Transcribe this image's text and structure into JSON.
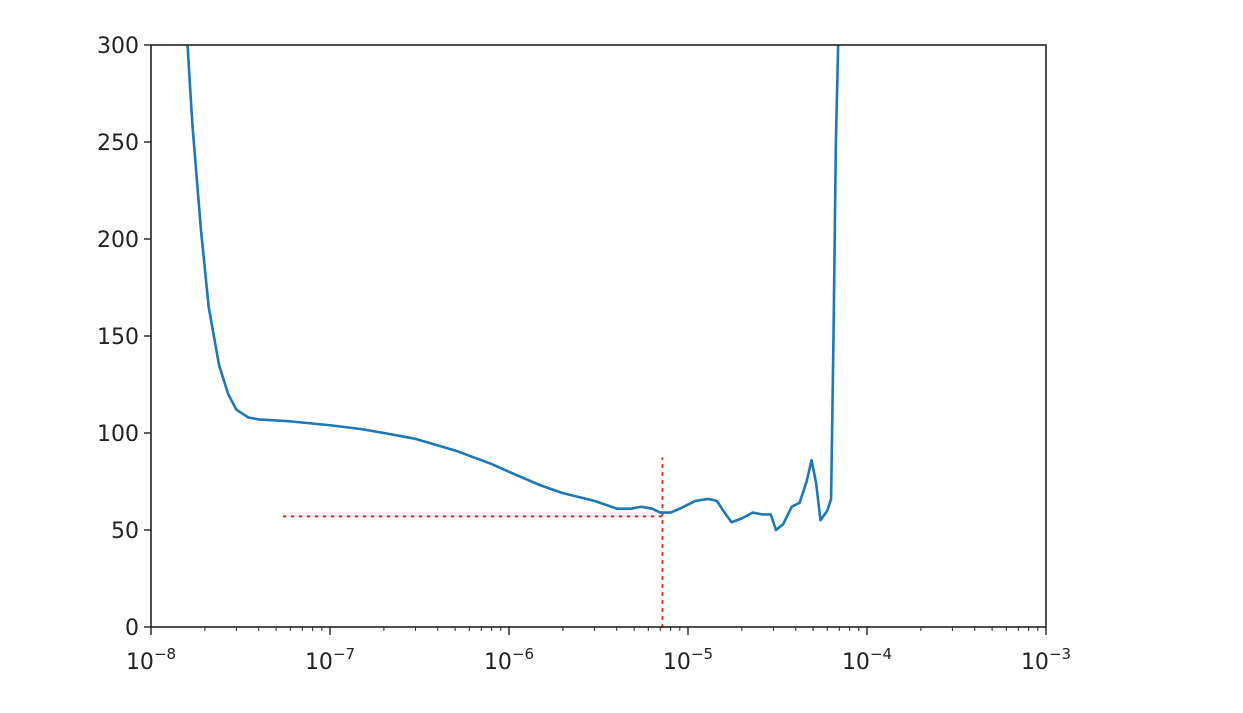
{
  "chart_data": {
    "type": "line",
    "title": "",
    "xlabel": "",
    "ylabel": "",
    "xscale": "log",
    "xlim": [
      1e-08,
      0.001
    ],
    "ylim": [
      0,
      300
    ],
    "grid": false,
    "x_ticks": [
      {
        "value": 1e-08,
        "base": "10",
        "exp": "−8"
      },
      {
        "value": 1e-07,
        "base": "10",
        "exp": "−7"
      },
      {
        "value": 1e-06,
        "base": "10",
        "exp": "−6"
      },
      {
        "value": 1e-05,
        "base": "10",
        "exp": "−5"
      },
      {
        "value": 0.0001,
        "base": "10",
        "exp": "−4"
      },
      {
        "value": 0.001,
        "base": "10",
        "exp": "−3"
      }
    ],
    "y_ticks": [
      {
        "value": 0,
        "label": "0"
      },
      {
        "value": 50,
        "label": "50"
      },
      {
        "value": 100,
        "label": "100"
      },
      {
        "value": 150,
        "label": "150"
      },
      {
        "value": 200,
        "label": "200"
      },
      {
        "value": 250,
        "label": "250"
      },
      {
        "value": 300,
        "label": "300"
      }
    ],
    "series": [
      {
        "color": "#1f77b4",
        "points": [
          [
            1.6e-08,
            300
          ],
          [
            1.7e-08,
            260
          ],
          [
            1.9e-08,
            205
          ],
          [
            2.1e-08,
            165
          ],
          [
            2.4e-08,
            135
          ],
          [
            2.7e-08,
            120
          ],
          [
            3e-08,
            112
          ],
          [
            3.5e-08,
            108
          ],
          [
            4e-08,
            107
          ],
          [
            6e-08,
            106
          ],
          [
            1e-07,
            104
          ],
          [
            1.5e-07,
            102
          ],
          [
            2e-07,
            100
          ],
          [
            3e-07,
            97
          ],
          [
            5e-07,
            91
          ],
          [
            8e-07,
            84
          ],
          [
            1e-06,
            80
          ],
          [
            1.5e-06,
            73
          ],
          [
            2e-06,
            69
          ],
          [
            3e-06,
            65
          ],
          [
            4e-06,
            61
          ],
          [
            4.8e-06,
            61
          ],
          [
            5.5e-06,
            62
          ],
          [
            6.3e-06,
            61
          ],
          [
            7e-06,
            59
          ],
          [
            8e-06,
            59
          ],
          [
            9e-06,
            61
          ],
          [
            1.1e-05,
            65
          ],
          [
            1.3e-05,
            66
          ],
          [
            1.45e-05,
            65
          ],
          [
            1.6e-05,
            59
          ],
          [
            1.75e-05,
            54
          ],
          [
            2e-05,
            56
          ],
          [
            2.3e-05,
            59
          ],
          [
            2.6e-05,
            58
          ],
          [
            2.9e-05,
            58
          ],
          [
            3.1e-05,
            50
          ],
          [
            3.4e-05,
            53
          ],
          [
            3.8e-05,
            62
          ],
          [
            4.2e-05,
            64
          ],
          [
            4.6e-05,
            75
          ],
          [
            4.9e-05,
            86
          ],
          [
            5.2e-05,
            74
          ],
          [
            5.5e-05,
            55
          ],
          [
            6e-05,
            60
          ],
          [
            6.3e-05,
            66
          ],
          [
            6.5e-05,
            150
          ],
          [
            6.7e-05,
            250
          ],
          [
            6.9e-05,
            300
          ]
        ]
      }
    ],
    "annotations": [
      {
        "type": "hline",
        "y": 57,
        "x_from": 5.5e-08,
        "x_to": 7.2e-06,
        "color": "#d62728",
        "style": "dotted"
      },
      {
        "type": "vline",
        "x": 7.2e-06,
        "y_from": 0,
        "y_to": 87,
        "color": "#d62728",
        "style": "dotted"
      }
    ]
  }
}
